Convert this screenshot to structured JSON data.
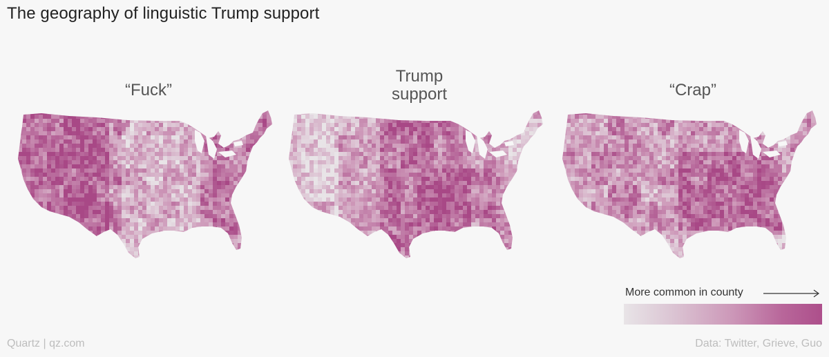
{
  "title": "The geography of linguistic Trump support",
  "maps": [
    {
      "label": "“Fuck”",
      "pattern": "fuck",
      "color_hint": "#ad4f8b"
    },
    {
      "label": "Trump\nsupport",
      "pattern": "trump",
      "color_hint": "#ad4f8b"
    },
    {
      "label": "“Crap”",
      "pattern": "crap",
      "color_hint": "#ad4f8b"
    }
  ],
  "legend": {
    "label": "More common in county",
    "arrow_icon": "long-right-arrow-icon",
    "color_low": "#e8e4e7",
    "color_high": "#ad4f8b"
  },
  "footer": {
    "source_left": "Quartz | qz.com",
    "source_right": "Data: Twitter, Grieve, Guo"
  }
}
